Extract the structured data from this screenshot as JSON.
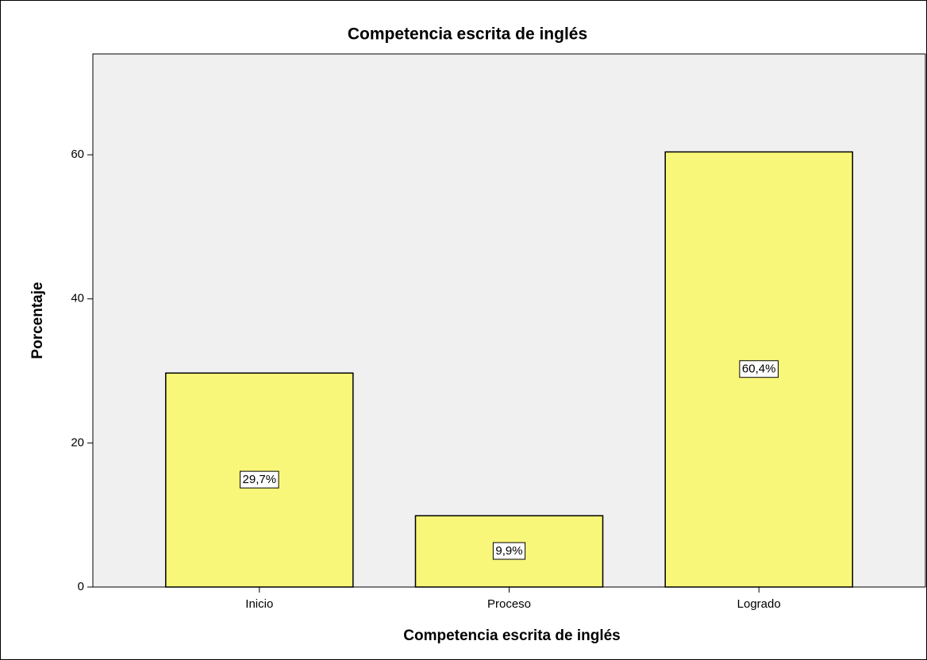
{
  "chart_data": {
    "type": "bar",
    "title": "Competencia escrita de inglés",
    "x_label": "Competencia escrita de inglés",
    "y_label": "Porcentaje",
    "categories": [
      "Inicio",
      "Proceso",
      "Logrado"
    ],
    "values": [
      29.7,
      9.9,
      60.4
    ],
    "value_labels": [
      "29,7%",
      "9,9%",
      "60,4%"
    ],
    "color": "#f9f779",
    "ylim": [
      0,
      74
    ],
    "yticks": [
      0,
      20,
      40,
      60
    ],
    "grid": false
  }
}
